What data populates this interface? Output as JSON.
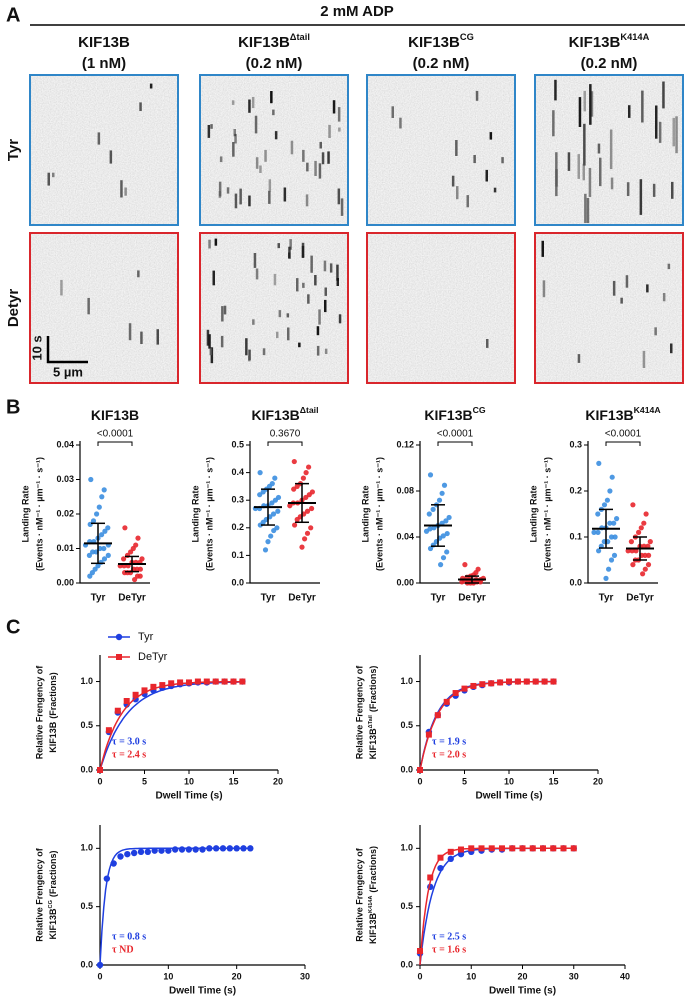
{
  "panel_labels": [
    "A",
    "B",
    "C"
  ],
  "panel_a": {
    "condition": "2 mM ADP",
    "columns": [
      {
        "name": "KIF13B",
        "conc": "(1 nM)"
      },
      {
        "name": "KIF13B",
        "name_sup": "Δtail",
        "conc": "(0.2 nM)"
      },
      {
        "name": "KIF13B",
        "name_sup": "CG",
        "conc": "(0.2 nM)"
      },
      {
        "name": "KIF13B",
        "name_sup": "K414A",
        "conc": "(0.2 nM)"
      }
    ],
    "rows": [
      "Tyr",
      "Detyr"
    ],
    "scale_bar": {
      "time": "10 s",
      "length": "5 µm"
    }
  },
  "chart_data": [
    {
      "type": "strip",
      "title": "KIF13B",
      "ylabel": [
        "Landing Rate",
        "(Events · nM⁻¹ · µm⁻¹ · s⁻¹)"
      ],
      "annotation": "<0.0001",
      "ylim": [
        0,
        0.04
      ],
      "yticks": [
        {
          "value": 0,
          "label": "0.00"
        },
        0.01,
        0.02,
        0.03,
        0.04
      ],
      "groups": [
        {
          "name": "Tyr",
          "color": "#3b8ee0",
          "mean": 0.0115,
          "sd": 0.0058,
          "values": [
            0.03,
            0.027,
            0.025,
            0.022,
            0.02,
            0.018,
            0.017,
            0.016,
            0.015,
            0.014,
            0.013,
            0.012,
            0.012,
            0.011,
            0.011,
            0.01,
            0.01,
            0.009,
            0.009,
            0.008,
            0.008,
            0.007,
            0.006,
            0.005,
            0.004,
            0.003,
            0.002
          ]
        },
        {
          "name": "DeTyr",
          "color": "#e8262c",
          "mean": 0.0055,
          "sd": 0.0022,
          "values": [
            0.016,
            0.013,
            0.011,
            0.01,
            0.009,
            0.008,
            0.007,
            0.007,
            0.006,
            0.006,
            0.006,
            0.005,
            0.005,
            0.005,
            0.004,
            0.004,
            0.004,
            0.003,
            0.003,
            0.003,
            0.002,
            0.002,
            0.001
          ]
        }
      ]
    },
    {
      "type": "strip",
      "title": "KIF13B",
      "title_sup": "Δtail",
      "ylabel": [
        "Landing Rate",
        "(Events · nM⁻¹ · µm⁻¹ · s⁻¹)"
      ],
      "annotation": "0.3670",
      "ylim": [
        0,
        0.5
      ],
      "yticks": [
        {
          "value": 0,
          "label": "0.0"
        },
        0.1,
        0.2,
        0.3,
        0.4,
        0.5
      ],
      "groups": [
        {
          "name": "Tyr",
          "color": "#3b8ee0",
          "mean": 0.275,
          "sd": 0.065,
          "values": [
            0.4,
            0.38,
            0.36,
            0.35,
            0.34,
            0.33,
            0.32,
            0.31,
            0.3,
            0.29,
            0.28,
            0.28,
            0.27,
            0.27,
            0.26,
            0.25,
            0.24,
            0.23,
            0.22,
            0.21,
            0.2,
            0.19,
            0.17,
            0.15,
            0.12
          ]
        },
        {
          "name": "DeTyr",
          "color": "#e8262c",
          "mean": 0.29,
          "sd": 0.07,
          "values": [
            0.44,
            0.42,
            0.4,
            0.38,
            0.36,
            0.35,
            0.34,
            0.33,
            0.32,
            0.31,
            0.3,
            0.29,
            0.29,
            0.28,
            0.27,
            0.26,
            0.25,
            0.24,
            0.23,
            0.21,
            0.2,
            0.18,
            0.16,
            0.13
          ]
        }
      ]
    },
    {
      "type": "strip",
      "title": "KIF13B",
      "title_sup": "CG",
      "ylabel": [
        "Landing Rate",
        "(Events · nM⁻¹ · µm⁻¹ · s⁻¹)"
      ],
      "annotation": "<0.0001",
      "ylim": [
        0,
        0.12
      ],
      "yticks": [
        {
          "value": 0,
          "label": "0.00"
        },
        0.04,
        0.08,
        0.12
      ],
      "groups": [
        {
          "name": "Tyr",
          "color": "#3b8ee0",
          "mean": 0.05,
          "sd": 0.018,
          "values": [
            0.094,
            0.085,
            0.078,
            0.072,
            0.068,
            0.064,
            0.06,
            0.057,
            0.054,
            0.052,
            0.05,
            0.048,
            0.047,
            0.045,
            0.043,
            0.041,
            0.039,
            0.036,
            0.033,
            0.03,
            0.027,
            0.022,
            0.016
          ]
        },
        {
          "name": "DeTyr",
          "color": "#e8262c",
          "mean": 0.003,
          "sd": 0.003,
          "values": [
            0.016,
            0.012,
            0.009,
            0.007,
            0.006,
            0.005,
            0.004,
            0.004,
            0.003,
            0.003,
            0.002,
            0.002,
            0.002,
            0.001,
            0.001,
            0.001,
            0,
            0,
            0
          ]
        }
      ]
    },
    {
      "type": "strip",
      "title": "KIF13B",
      "title_sup": "K414A",
      "ylabel": [
        "Landing Rate",
        "(Events · nM⁻¹ · µm⁻¹ · s⁻¹)"
      ],
      "annotation": "<0.0001",
      "ylim": [
        0,
        0.3
      ],
      "yticks": [
        {
          "value": 0,
          "label": "0.0"
        },
        0.1,
        0.2,
        0.3
      ],
      "groups": [
        {
          "name": "Tyr",
          "color": "#3b8ee0",
          "mean": 0.118,
          "sd": 0.042,
          "values": [
            0.26,
            0.23,
            0.2,
            0.18,
            0.17,
            0.16,
            0.15,
            0.14,
            0.13,
            0.13,
            0.12,
            0.12,
            0.11,
            0.11,
            0.1,
            0.1,
            0.09,
            0.09,
            0.08,
            0.07,
            0.06,
            0.05,
            0.03,
            0.01
          ]
        },
        {
          "name": "DeTyr",
          "color": "#e8262c",
          "mean": 0.075,
          "sd": 0.025,
          "values": [
            0.17,
            0.15,
            0.13,
            0.12,
            0.11,
            0.1,
            0.09,
            0.09,
            0.08,
            0.08,
            0.08,
            0.07,
            0.07,
            0.07,
            0.06,
            0.06,
            0.06,
            0.05,
            0.05,
            0.04,
            0.04,
            0.03,
            0.02
          ]
        }
      ]
    },
    {
      "type": "line",
      "ylabel": {
        "line1": "Relative Frengency of",
        "name": "KIF13B",
        "unit": "(Fractions)"
      },
      "xlabel": "Dwell Time (s)",
      "xlim": [
        0,
        20
      ],
      "xticks": [
        0,
        5,
        10,
        15,
        20
      ],
      "ylim": [
        0,
        1.3
      ],
      "yticks": [
        {
          "value": 0,
          "label": "0.0"
        },
        0.5,
        {
          "value": 1,
          "label": "1.0"
        }
      ],
      "legend": "top-left",
      "x": [
        0,
        1,
        2,
        3,
        4,
        5,
        6,
        7,
        8,
        9,
        10,
        11,
        12,
        13,
        14,
        15,
        16
      ],
      "series": [
        {
          "name": "Tyr",
          "color": "#1f3fe0",
          "marker": "circle",
          "tau": 3.0,
          "tau_label": "τ = 3.0 s",
          "values": [
            0,
            0.43,
            0.65,
            0.74,
            0.8,
            0.86,
            0.9,
            0.93,
            0.95,
            0.97,
            0.98,
            0.99,
            0.99,
            1,
            1,
            1,
            1
          ]
        },
        {
          "name": "DeTyr",
          "color": "#e8262c",
          "marker": "square",
          "tau": 2.4,
          "tau_label": "τ = 2.4 s",
          "values": [
            0,
            0.45,
            0.67,
            0.78,
            0.85,
            0.9,
            0.94,
            0.96,
            0.98,
            0.99,
            0.99,
            1,
            1,
            1,
            1,
            1,
            1
          ]
        }
      ]
    },
    {
      "type": "line",
      "ylabel": {
        "line1": "Relative Frengency of",
        "name": "KIF13B",
        "name_sup": "ΔTail",
        "unit": "(Fractions)"
      },
      "xlabel": "Dwell Time (s)",
      "xlim": [
        0,
        20
      ],
      "xticks": [
        0,
        5,
        10,
        15,
        20
      ],
      "ylim": [
        0,
        1.3
      ],
      "yticks": [
        {
          "value": 0,
          "label": "0.0"
        },
        0.5,
        {
          "value": 1,
          "label": "1.0"
        }
      ],
      "x": [
        0,
        1,
        2,
        3,
        4,
        5,
        6,
        7,
        8,
        9,
        10,
        11,
        12,
        13,
        14,
        15
      ],
      "series": [
        {
          "color": "#1f3fe0",
          "marker": "circle",
          "tau": 1.9,
          "tau_label": "τ = 1.9 s",
          "values": [
            0,
            0.43,
            0.62,
            0.75,
            0.84,
            0.9,
            0.94,
            0.96,
            0.98,
            0.99,
            0.99,
            1,
            1,
            1,
            1,
            1
          ]
        },
        {
          "color": "#e8262c",
          "marker": "square",
          "tau": 2.0,
          "tau_label": "τ = 2.0 s",
          "values": [
            0,
            0.4,
            0.62,
            0.77,
            0.87,
            0.92,
            0.95,
            0.97,
            0.98,
            0.99,
            1,
            1,
            1,
            1,
            1,
            1
          ]
        }
      ]
    },
    {
      "type": "line",
      "ylabel": {
        "line1": "Relative Frengency of",
        "name": "KIF13B",
        "name_sup": "CG",
        "unit": "(Fractions)"
      },
      "xlabel": "Dwell Time (s)",
      "xlim": [
        0,
        30
      ],
      "xticks": [
        0,
        10,
        20,
        30
      ],
      "ylim": [
        0,
        1.2
      ],
      "yticks": [
        {
          "value": 0,
          "label": "0.0"
        },
        0.5,
        {
          "value": 1,
          "label": "1.0"
        }
      ],
      "x": [
        0,
        1,
        2,
        3,
        4,
        5,
        6,
        7,
        8,
        9,
        10,
        11,
        12,
        13,
        14,
        15,
        16,
        17,
        18,
        19,
        20,
        21,
        22
      ],
      "series": [
        {
          "color": "#1f3fe0",
          "marker": "circle",
          "tau": 0.8,
          "tau_label": "τ = 0.8 s",
          "values": [
            0,
            0.74,
            0.87,
            0.93,
            0.95,
            0.96,
            0.97,
            0.97,
            0.98,
            0.98,
            0.98,
            0.99,
            0.99,
            0.99,
            0.99,
            0.99,
            1,
            1,
            1,
            1,
            1,
            1,
            1
          ]
        },
        {
          "color": "#e8262c",
          "tau": null,
          "tau_label": "τ  ND"
        }
      ]
    },
    {
      "type": "line",
      "ylabel": {
        "line1": "Relative Frengency of",
        "name": "KIF13B",
        "name_sup": "K414A",
        "unit": "(Fractions)"
      },
      "xlabel": "Dwell Time (s)",
      "xlim": [
        0,
        40
      ],
      "xticks": [
        0,
        10,
        20,
        30,
        40
      ],
      "ylim": [
        0,
        1.2
      ],
      "yticks": [
        {
          "value": 0,
          "label": "0.0"
        },
        0.5,
        {
          "value": 1,
          "label": "1.0"
        }
      ],
      "x": [
        0,
        2,
        4,
        6,
        8,
        10,
        12,
        14,
        16,
        18,
        20,
        22,
        24,
        26,
        28,
        30
      ],
      "series": [
        {
          "color": "#1f3fe0",
          "marker": "circle",
          "tau": 2.5,
          "tau_label": "τ = 2.5 s",
          "values": [
            0.1,
            0.67,
            0.83,
            0.91,
            0.95,
            0.97,
            0.98,
            0.99,
            0.99,
            1,
            1,
            1,
            1,
            1,
            1,
            1
          ]
        },
        {
          "color": "#e8262c",
          "marker": "square",
          "tau": 1.6,
          "tau_label": "τ = 1.6 s",
          "values": [
            0.12,
            0.75,
            0.92,
            0.97,
            0.99,
            1,
            1,
            1,
            1,
            1,
            1,
            1,
            1,
            1,
            1,
            1
          ]
        }
      ]
    }
  ]
}
